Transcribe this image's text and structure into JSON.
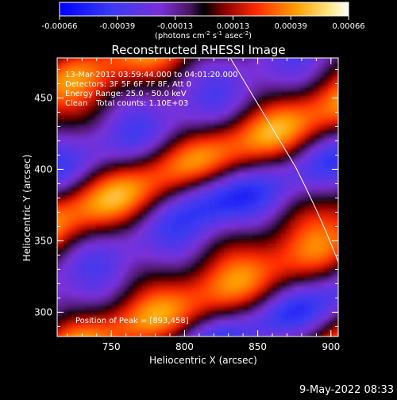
{
  "colorbar": {
    "ticks": [
      "-0.00066",
      "-0.00039",
      "-0.00013",
      "0.00013",
      "0.00039",
      "0.00066"
    ],
    "units_prefix": "(photons cm",
    "units_exp1": "-2",
    "units_mid": " s",
    "units_exp2": "-1",
    "units_mid2": " asec",
    "units_exp3": "-2",
    "units_suffix": ")"
  },
  "plot": {
    "title": "Reconstructed RHESSI Image",
    "xlabel": "Heliocentric X (arcsec)",
    "ylabel": "Heliocentric Y (arcsec)",
    "xticks": [
      "750",
      "800",
      "850",
      "900"
    ],
    "yticks": [
      "300",
      "350",
      "400",
      "450"
    ],
    "xlim": [
      713,
      905
    ],
    "ylim": [
      283,
      478
    ]
  },
  "annotations": {
    "time_range": "13-Mar-2012 03:59:44.000 to 04:01:20.000",
    "detectors": "Detectors: 3F 5F 6F 7F 8F, Att 0",
    "energy_range": "Energy Range: 25.0 - 50.0 keV",
    "method": "Clean",
    "total_counts": "Total counts: 1.10E+03",
    "peak_position": "Position of Peak = [893,458]"
  },
  "footer": {
    "timestamp": "9-May-2022 08:33"
  },
  "colors": {
    "background": "#000000",
    "foreground": "#ffffff",
    "limb_line": "#ffffff"
  }
}
